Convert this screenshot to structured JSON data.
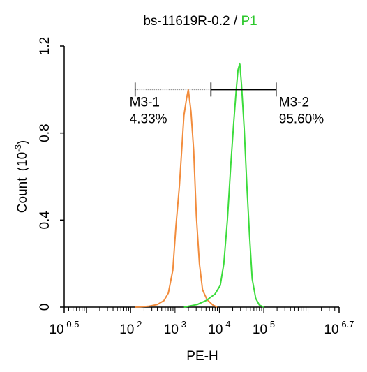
{
  "chart_data": {
    "type": "line",
    "title_prefix": "bs-11619R-0.2 / ",
    "title_highlight": "P1",
    "xlabel": "PE-H",
    "ylabel_text": "Count",
    "ylabel_unit_base": "(10",
    "ylabel_unit_exp": "-3",
    "ylabel_unit_close": ")",
    "x_scale": "log10",
    "xlim_log10": [
      0.5,
      6.7
    ],
    "ylim": [
      0,
      1.2
    ],
    "x_ticks": [
      {
        "base": "10",
        "exp": "0.5",
        "log": 0.5
      },
      {
        "base": "10",
        "exp": "2",
        "log": 2
      },
      {
        "base": "10",
        "exp": "3",
        "log": 3
      },
      {
        "base": "10",
        "exp": "4",
        "log": 4
      },
      {
        "base": "10",
        "exp": "5",
        "log": 5
      },
      {
        "base": "10",
        "exp": "6.7",
        "log": 6.7
      }
    ],
    "y_ticks": [
      {
        "label": "0",
        "value": 0
      },
      {
        "label": "0.4",
        "value": 0.4
      },
      {
        "label": "0.8",
        "value": 0.8
      },
      {
        "label": "1.2",
        "value": 1.2
      }
    ],
    "series": [
      {
        "color": "#F28C3C",
        "x_log10": [
          2.1,
          2.4,
          2.6,
          2.75,
          2.85,
          2.95,
          3.02,
          3.1,
          3.15,
          3.2,
          3.26,
          3.3,
          3.36,
          3.42,
          3.48,
          3.55,
          3.62,
          3.72,
          3.85,
          3.95
        ],
        "y": [
          0.0,
          0.004,
          0.012,
          0.03,
          0.065,
          0.17,
          0.37,
          0.56,
          0.72,
          0.88,
          0.96,
          1.0,
          0.9,
          0.72,
          0.42,
          0.2,
          0.08,
          0.035,
          0.01,
          0.0
        ]
      },
      {
        "color": "#3CDC3C",
        "x_log10": [
          3.2,
          3.5,
          3.7,
          3.9,
          4.02,
          4.1,
          4.18,
          4.26,
          4.32,
          4.38,
          4.42,
          4.46,
          4.5,
          4.56,
          4.62,
          4.68,
          4.74,
          4.82,
          4.9,
          5.0
        ],
        "y": [
          0.0,
          0.012,
          0.03,
          0.06,
          0.1,
          0.2,
          0.4,
          0.66,
          0.84,
          1.0,
          1.09,
          1.12,
          1.02,
          0.82,
          0.56,
          0.33,
          0.13,
          0.04,
          0.01,
          0.0
        ]
      }
    ],
    "markers": [
      {
        "label": "M3-1",
        "percent": "4.33%",
        "x_start_log10": 2.1,
        "x_end_log10": 3.81,
        "y": 1.0
      },
      {
        "label": "M3-2",
        "percent": "95.60%",
        "x_start_log10": 3.81,
        "x_end_log10": 5.28,
        "y": 1.0
      }
    ],
    "colors": {
      "title_highlight": "#2DC82D",
      "axis": "#000000",
      "m3_1_dotted": "#9A9A9A"
    }
  }
}
